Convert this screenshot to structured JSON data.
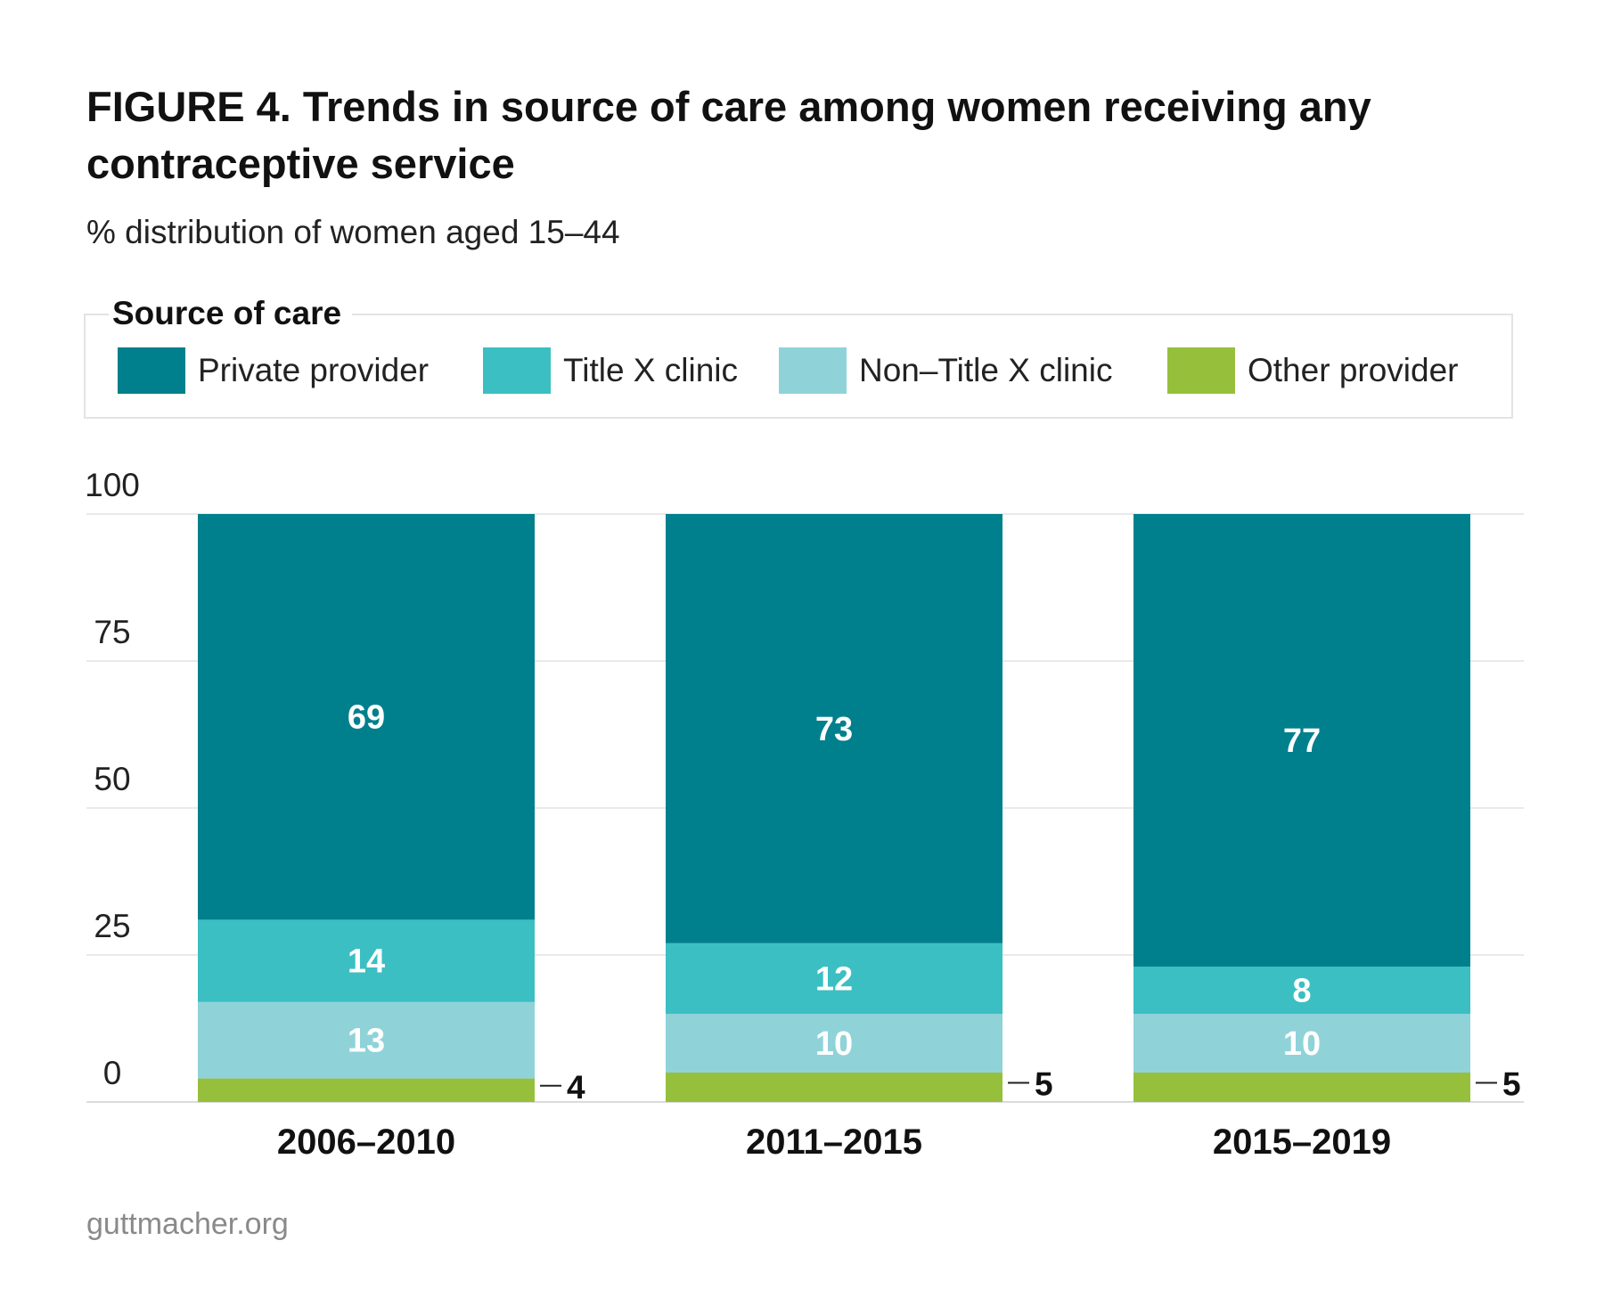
{
  "chart_data": {
    "type": "bar",
    "stacked": true,
    "title": "FIGURE 4. Trends in source of care among women receiving any contraceptive service",
    "subtitle": "% distribution of women aged 15–44",
    "legend_title": "Source of care",
    "legend_position": "top",
    "categories": [
      "2006–2010",
      "2011–2015",
      "2015–2019"
    ],
    "series": [
      {
        "name": "Other provider",
        "color": "#96c03c",
        "values": [
          4,
          5,
          5
        ]
      },
      {
        "name": "Non–Title X clinic",
        "color": "#8fd3d9",
        "values": [
          13,
          10,
          10
        ]
      },
      {
        "name": "Title X clinic",
        "color": "#3bbfc2",
        "values": [
          14,
          12,
          8
        ]
      },
      {
        "name": "Private provider",
        "color": "#00808c",
        "values": [
          69,
          73,
          77
        ]
      }
    ],
    "legend_order": [
      "Private provider",
      "Title X clinic",
      "Non–Title X clinic",
      "Other provider"
    ],
    "ylim": [
      0,
      100
    ],
    "yticks": [
      0,
      25,
      50,
      75,
      100
    ],
    "grid": true,
    "xlabel": "",
    "ylabel": ""
  },
  "source": "guttmacher.org"
}
